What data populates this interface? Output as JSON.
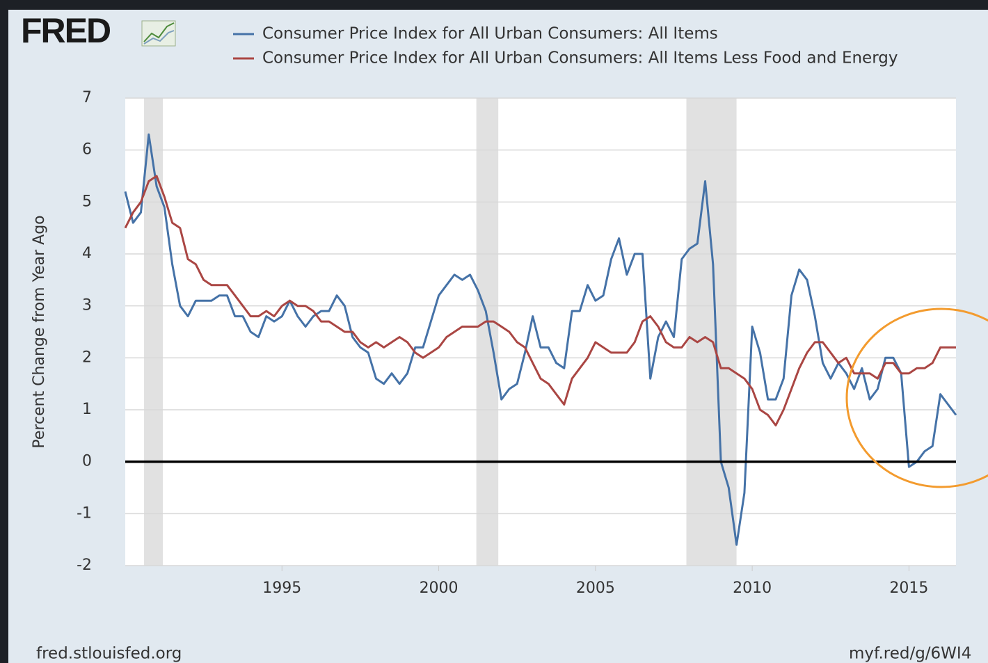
{
  "logo": "FRED",
  "footer_left": "fred.stlouisfed.org",
  "footer_right": "myf.red/g/6WI4",
  "chart_data": {
    "type": "line",
    "y_label": "Percent Change from Year Ago",
    "x": [
      1990,
      1990.25,
      1990.5,
      1990.75,
      1991,
      1991.25,
      1991.5,
      1991.75,
      1992,
      1992.25,
      1992.5,
      1992.75,
      1993,
      1993.25,
      1993.5,
      1993.75,
      1994,
      1994.25,
      1994.5,
      1994.75,
      1995,
      1995.25,
      1995.5,
      1995.75,
      1996,
      1996.25,
      1996.5,
      1996.75,
      1997,
      1997.25,
      1997.5,
      1997.75,
      1998,
      1998.25,
      1998.5,
      1998.75,
      1999,
      1999.25,
      1999.5,
      1999.75,
      2000,
      2000.25,
      2000.5,
      2000.75,
      2001,
      2001.25,
      2001.5,
      2001.75,
      2002,
      2002.25,
      2002.5,
      2002.75,
      2003,
      2003.25,
      2003.5,
      2003.75,
      2004,
      2004.25,
      2004.5,
      2004.75,
      2005,
      2005.25,
      2005.5,
      2005.75,
      2006,
      2006.25,
      2006.5,
      2006.75,
      2007,
      2007.25,
      2007.5,
      2007.75,
      2008,
      2008.25,
      2008.5,
      2008.75,
      2009,
      2009.25,
      2009.5,
      2009.75,
      2010,
      2010.25,
      2010.5,
      2010.75,
      2011,
      2011.25,
      2011.5,
      2011.75,
      2012,
      2012.25,
      2012.5,
      2012.75,
      2013,
      2013.25,
      2013.5,
      2013.75,
      2014,
      2014.25,
      2014.5,
      2014.75,
      2015,
      2015.25,
      2015.5,
      2015.75,
      2016,
      2016.25,
      2016.5
    ],
    "series": [
      {
        "name": "Consumer Price Index for All Urban Consumers: All Items",
        "color": "#4572a7",
        "values": [
          5.2,
          4.6,
          4.8,
          6.3,
          5.3,
          4.9,
          3.8,
          3.0,
          2.8,
          3.1,
          3.1,
          3.1,
          3.2,
          3.2,
          2.8,
          2.8,
          2.5,
          2.4,
          2.8,
          2.7,
          2.8,
          3.1,
          2.8,
          2.6,
          2.8,
          2.9,
          2.9,
          3.2,
          3.0,
          2.4,
          2.2,
          2.1,
          1.6,
          1.5,
          1.7,
          1.5,
          1.7,
          2.2,
          2.2,
          2.7,
          3.2,
          3.4,
          3.6,
          3.5,
          3.6,
          3.3,
          2.9,
          2.1,
          1.2,
          1.4,
          1.5,
          2.1,
          2.8,
          2.2,
          2.2,
          1.9,
          1.8,
          2.9,
          2.9,
          3.4,
          3.1,
          3.2,
          3.9,
          4.3,
          3.6,
          4.0,
          4.0,
          1.6,
          2.4,
          2.7,
          2.4,
          3.9,
          4.1,
          4.2,
          5.4,
          3.8,
          0.0,
          -0.5,
          -1.6,
          -0.6,
          2.6,
          2.1,
          1.2,
          1.2,
          1.6,
          3.2,
          3.7,
          3.5,
          2.8,
          1.9,
          1.6,
          1.9,
          1.7,
          1.4,
          1.8,
          1.2,
          1.4,
          2.0,
          2.0,
          1.7,
          -0.1,
          0.0,
          0.2,
          0.3,
          1.3,
          1.1,
          0.9
        ]
      },
      {
        "name": "Consumer Price Index for All Urban Consumers: All Items Less Food and Energy",
        "color": "#aa4643",
        "values": [
          4.5,
          4.8,
          5.0,
          5.4,
          5.5,
          5.1,
          4.6,
          4.5,
          3.9,
          3.8,
          3.5,
          3.4,
          3.4,
          3.4,
          3.2,
          3.0,
          2.8,
          2.8,
          2.9,
          2.8,
          3.0,
          3.1,
          3.0,
          3.0,
          2.9,
          2.7,
          2.7,
          2.6,
          2.5,
          2.5,
          2.3,
          2.2,
          2.3,
          2.2,
          2.3,
          2.4,
          2.3,
          2.1,
          2.0,
          2.1,
          2.2,
          2.4,
          2.5,
          2.6,
          2.6,
          2.6,
          2.7,
          2.7,
          2.6,
          2.5,
          2.3,
          2.2,
          1.9,
          1.6,
          1.5,
          1.3,
          1.1,
          1.6,
          1.8,
          2.0,
          2.3,
          2.2,
          2.1,
          2.1,
          2.1,
          2.3,
          2.7,
          2.8,
          2.6,
          2.3,
          2.2,
          2.2,
          2.4,
          2.3,
          2.4,
          2.3,
          1.8,
          1.8,
          1.7,
          1.6,
          1.4,
          1.0,
          0.9,
          0.7,
          1.0,
          1.4,
          1.8,
          2.1,
          2.3,
          2.3,
          2.1,
          1.9,
          2.0,
          1.7,
          1.7,
          1.7,
          1.6,
          1.9,
          1.9,
          1.7,
          1.7,
          1.8,
          1.8,
          1.9,
          2.2,
          2.2,
          2.2
        ]
      }
    ],
    "recessions": [
      [
        1990.6,
        1991.2
      ],
      [
        2001.2,
        2001.9
      ],
      [
        2007.9,
        2009.5
      ]
    ],
    "xlim": [
      1990,
      2016.5
    ],
    "xticks": [
      1995,
      2000,
      2005,
      2010,
      2015
    ],
    "ylim": [
      -2,
      7
    ],
    "yticks": [
      -2,
      -1,
      0,
      1,
      2,
      3,
      4,
      5,
      6,
      7
    ],
    "grid": true
  }
}
